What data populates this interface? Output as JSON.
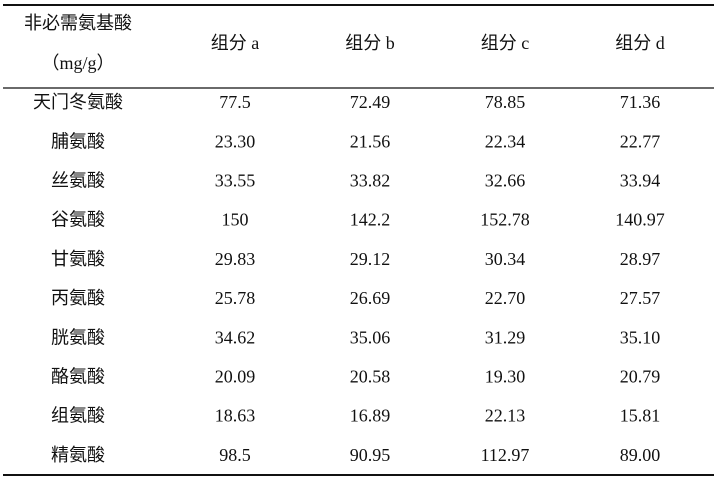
{
  "table": {
    "header": {
      "first": [
        "非必需氨基酸",
        "（mg/g）"
      ],
      "columns": [
        "组分 a",
        "组分 b",
        "组分 c",
        "组分 d"
      ]
    },
    "rows": [
      [
        "天门冬氨酸",
        "77.5",
        "72.49",
        "78.85",
        "71.36"
      ],
      [
        "脯氨酸",
        "23.30",
        "21.56",
        "22.34",
        "22.77"
      ],
      [
        "丝氨酸",
        "33.55",
        "33.82",
        "32.66",
        "33.94"
      ],
      [
        "谷氨酸",
        "150",
        "142.2",
        "152.78",
        "140.97"
      ],
      [
        "甘氨酸",
        "29.83",
        "29.12",
        "30.34",
        "28.97"
      ],
      [
        "丙氨酸",
        "25.78",
        "26.69",
        "22.70",
        "27.57"
      ],
      [
        "胱氨酸",
        "34.62",
        "35.06",
        "31.29",
        "35.10"
      ],
      [
        "酪氨酸",
        "20.09",
        "20.58",
        "19.30",
        "20.79"
      ],
      [
        "组氨酸",
        "18.63",
        "16.89",
        "22.13",
        "15.81"
      ],
      [
        "精氨酸",
        "98.5",
        "90.95",
        "112.97",
        "89.00"
      ]
    ]
  }
}
